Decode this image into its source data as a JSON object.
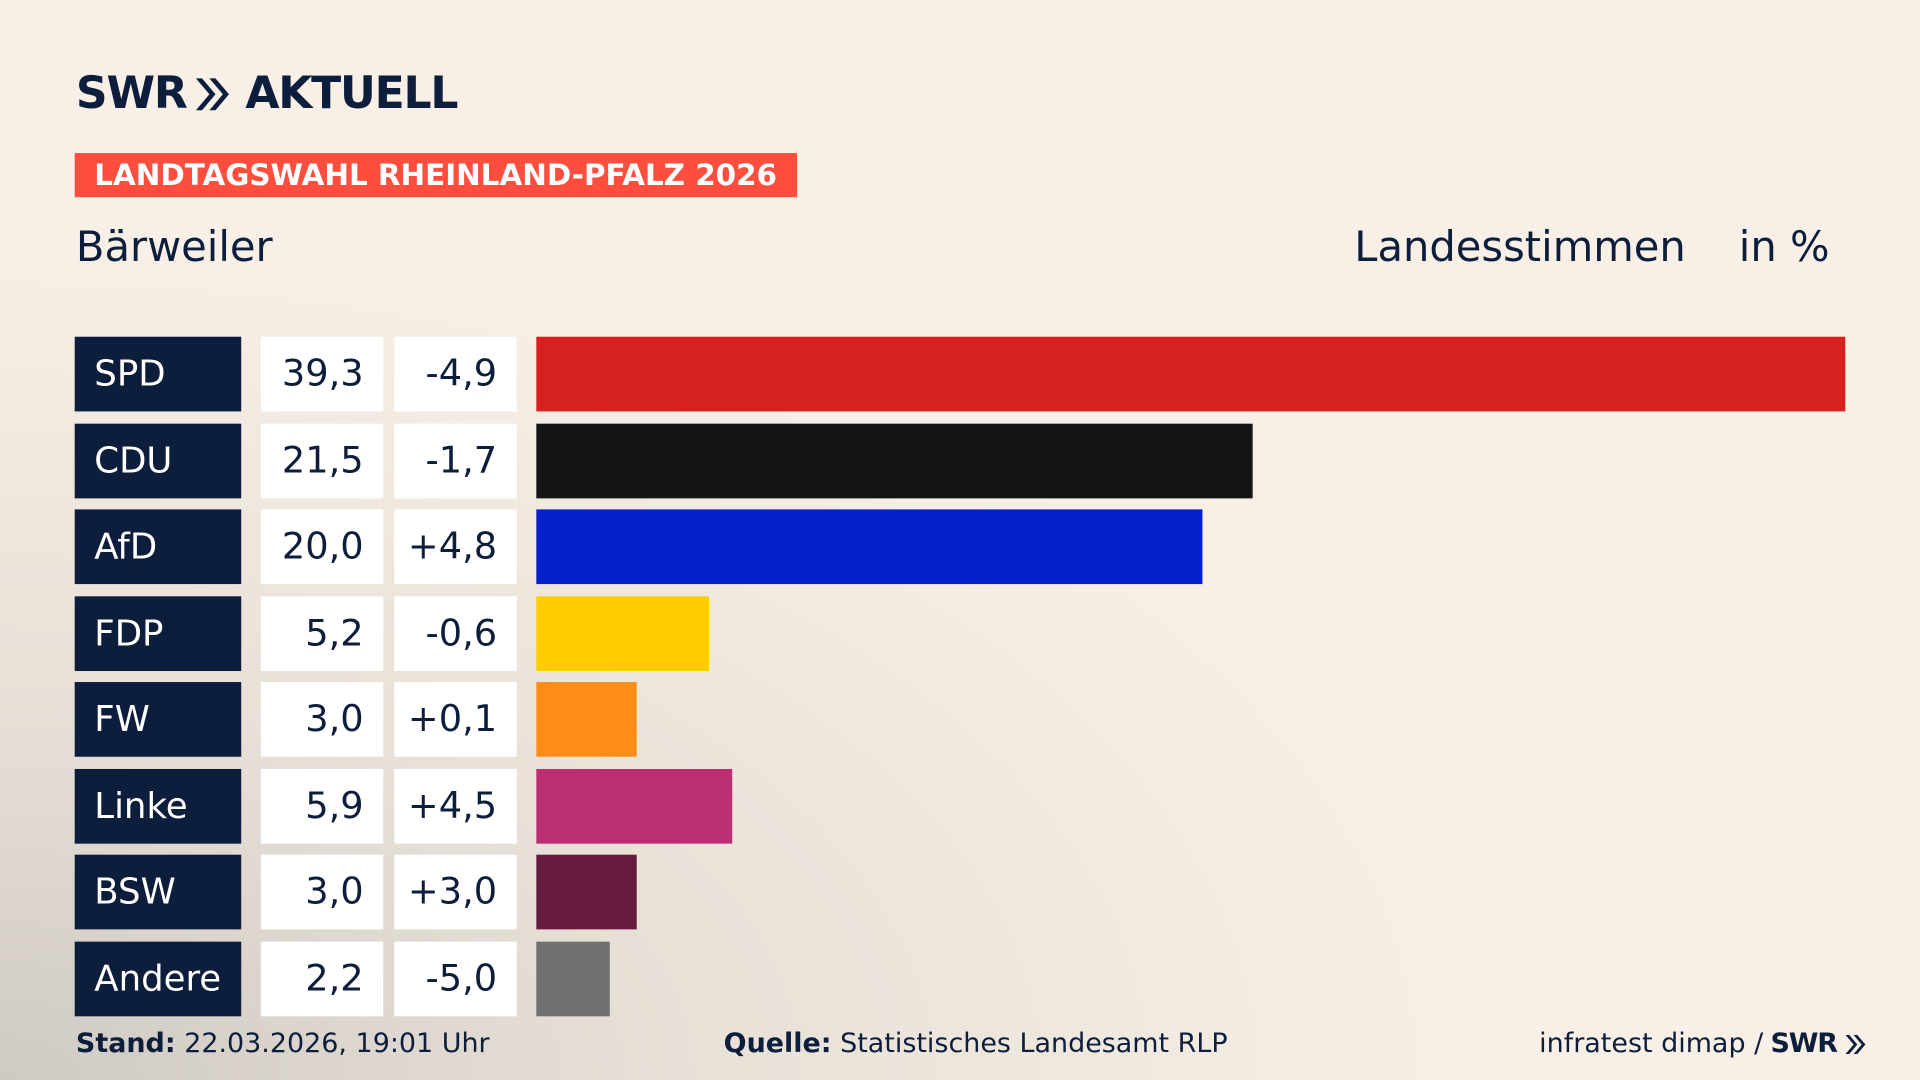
{
  "header": {
    "logo_text": "SWR",
    "logo_suffix": "AKTUELL",
    "banner": "LANDTAGSWAHL RHEINLAND-PFALZ 2026"
  },
  "place": "Bärweiler",
  "metric": "Landesstimmen",
  "unit": "in %",
  "chart_data": {
    "type": "bar",
    "orientation": "horizontal",
    "categories": [
      "SPD",
      "CDU",
      "AfD",
      "FDP",
      "FW",
      "Linke",
      "BSW",
      "Andere"
    ],
    "values": [
      39.3,
      21.5,
      20.0,
      5.2,
      3.0,
      5.9,
      3.0,
      2.2
    ],
    "value_labels": [
      "39,3",
      "21,5",
      "20,0",
      "5,2",
      "3,0",
      "5,9",
      "3,0",
      "2,2"
    ],
    "diff_labels": [
      "-4,9",
      "-1,7",
      "+4,8",
      "-0,6",
      "+0,1",
      "+4,5",
      "+3,0",
      "-5,0"
    ],
    "colors": [
      "#d72020",
      "#141414",
      "#0420c8",
      "#ffcc00",
      "#ff8c17",
      "#bb2f72",
      "#661a3e",
      "#717171"
    ],
    "xlim": [
      0,
      39.3
    ]
  },
  "footer": {
    "stand_label": "Stand:",
    "stand_value": "22.03.2026, 19:01 Uhr",
    "source_label": "Quelle:",
    "source_value": "Statistisches Landesamt RLP",
    "credit": "infratest dimap /",
    "credit_logo": "SWR"
  }
}
